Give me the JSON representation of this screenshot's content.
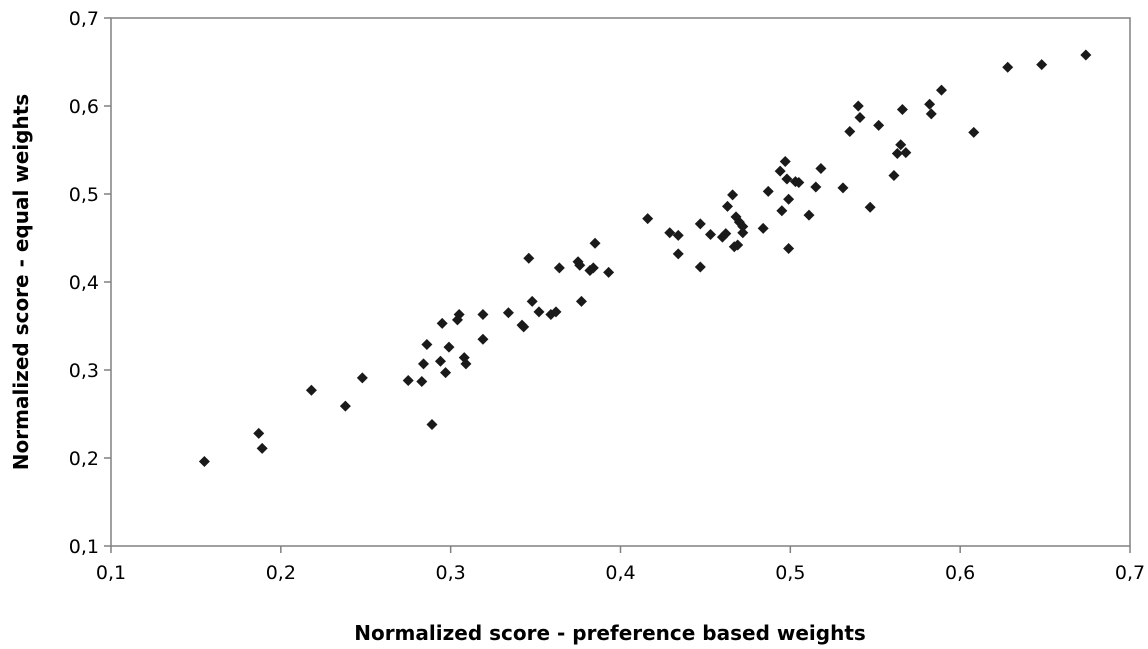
{
  "chart_data": {
    "type": "scatter",
    "title": "",
    "xlabel": "Normalized score - preference based weights",
    "ylabel": "Normalized score - equal weights",
    "xlim": [
      0.1,
      0.7
    ],
    "ylim": [
      0.1,
      0.7
    ],
    "xticks": [
      "0,1",
      "0,2",
      "0,3",
      "0,4",
      "0,5",
      "0,6",
      "0,7"
    ],
    "yticks": [
      "0,1",
      "0,2",
      "0,3",
      "0,4",
      "0,5",
      "0,6",
      "0,7"
    ],
    "grid": false,
    "legend": "none",
    "marker": "diamond",
    "marker_color": "#1a1a1a",
    "series": [
      {
        "points": [
          [
            0.155,
            0.196
          ],
          [
            0.187,
            0.228
          ],
          [
            0.189,
            0.211
          ],
          [
            0.218,
            0.277
          ],
          [
            0.238,
            0.259
          ],
          [
            0.248,
            0.291
          ],
          [
            0.275,
            0.288
          ],
          [
            0.283,
            0.287
          ],
          [
            0.284,
            0.307
          ],
          [
            0.286,
            0.329
          ],
          [
            0.289,
            0.238
          ],
          [
            0.294,
            0.31
          ],
          [
            0.295,
            0.353
          ],
          [
            0.297,
            0.297
          ],
          [
            0.299,
            0.326
          ],
          [
            0.304,
            0.357
          ],
          [
            0.305,
            0.363
          ],
          [
            0.308,
            0.314
          ],
          [
            0.309,
            0.307
          ],
          [
            0.319,
            0.335
          ],
          [
            0.319,
            0.363
          ],
          [
            0.334,
            0.365
          ],
          [
            0.342,
            0.351
          ],
          [
            0.343,
            0.349
          ],
          [
            0.346,
            0.427
          ],
          [
            0.348,
            0.378
          ],
          [
            0.352,
            0.366
          ],
          [
            0.359,
            0.363
          ],
          [
            0.362,
            0.366
          ],
          [
            0.364,
            0.416
          ],
          [
            0.375,
            0.423
          ],
          [
            0.376,
            0.419
          ],
          [
            0.377,
            0.378
          ],
          [
            0.382,
            0.413
          ],
          [
            0.384,
            0.416
          ],
          [
            0.385,
            0.444
          ],
          [
            0.393,
            0.411
          ],
          [
            0.416,
            0.472
          ],
          [
            0.429,
            0.456
          ],
          [
            0.434,
            0.453
          ],
          [
            0.434,
            0.432
          ],
          [
            0.447,
            0.466
          ],
          [
            0.447,
            0.417
          ],
          [
            0.453,
            0.454
          ],
          [
            0.46,
            0.451
          ],
          [
            0.462,
            0.455
          ],
          [
            0.463,
            0.486
          ],
          [
            0.466,
            0.499
          ],
          [
            0.467,
            0.44
          ],
          [
            0.468,
            0.474
          ],
          [
            0.469,
            0.442
          ],
          [
            0.47,
            0.468
          ],
          [
            0.472,
            0.456
          ],
          [
            0.472,
            0.463
          ],
          [
            0.484,
            0.461
          ],
          [
            0.487,
            0.503
          ],
          [
            0.494,
            0.526
          ],
          [
            0.495,
            0.481
          ],
          [
            0.497,
            0.537
          ],
          [
            0.498,
            0.517
          ],
          [
            0.499,
            0.494
          ],
          [
            0.499,
            0.438
          ],
          [
            0.503,
            0.514
          ],
          [
            0.505,
            0.513
          ],
          [
            0.511,
            0.476
          ],
          [
            0.515,
            0.508
          ],
          [
            0.518,
            0.529
          ],
          [
            0.531,
            0.507
          ],
          [
            0.535,
            0.571
          ],
          [
            0.54,
            0.6
          ],
          [
            0.541,
            0.587
          ],
          [
            0.547,
            0.485
          ],
          [
            0.552,
            0.578
          ],
          [
            0.561,
            0.521
          ],
          [
            0.563,
            0.546
          ],
          [
            0.565,
            0.556
          ],
          [
            0.566,
            0.596
          ],
          [
            0.568,
            0.547
          ],
          [
            0.582,
            0.602
          ],
          [
            0.583,
            0.591
          ],
          [
            0.589,
            0.618
          ],
          [
            0.608,
            0.57
          ],
          [
            0.628,
            0.644
          ],
          [
            0.648,
            0.647
          ],
          [
            0.674,
            0.658
          ]
        ]
      }
    ]
  }
}
